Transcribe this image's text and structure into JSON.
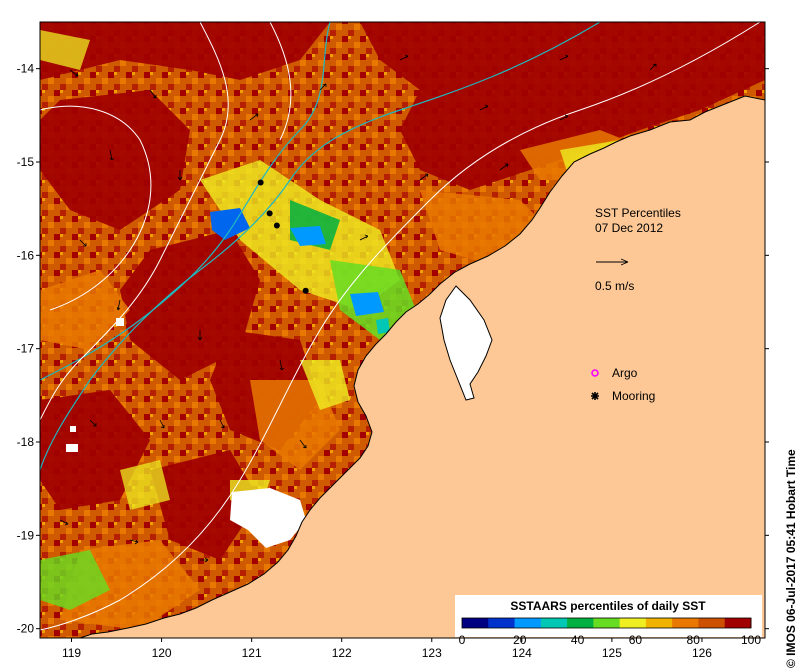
{
  "map": {
    "title_line1": "SST Percentiles",
    "title_line2": "07 Dec 2012",
    "vector_scale_label": "0.5 m/s",
    "x_ticks": [
      "119",
      "120",
      "121",
      "122",
      "123",
      "124",
      "125",
      "126"
    ],
    "y_ticks": [
      "-14",
      "-15",
      "-16",
      "-17",
      "-18",
      "-19",
      "-20"
    ],
    "x_range": [
      118.65,
      126.7
    ],
    "y_range": [
      -20.1,
      -13.5
    ],
    "colors": {
      "land": "#fdc896",
      "contour": "#ffffff",
      "shelf_isobath": "#20b8c0",
      "argo_marker": "#ff00ff",
      "mooring_marker": "#000000"
    },
    "markers": [
      {
        "type": "Mooring",
        "lon": 121.1,
        "lat": -15.22
      },
      {
        "type": "Mooring",
        "lon": 121.2,
        "lat": -15.55
      },
      {
        "type": "Mooring",
        "lon": 121.28,
        "lat": -15.68
      },
      {
        "type": "Mooring",
        "lon": 121.6,
        "lat": -16.38
      }
    ]
  },
  "legend": {
    "argo_label": "Argo",
    "mooring_label": "Mooring",
    "colorbar_title": "SSTAARS percentiles of daily SST",
    "colorbar_ticks": [
      "0",
      "20",
      "40",
      "60",
      "80",
      "100"
    ],
    "colorbar_colors": [
      "#000080",
      "#0033cc",
      "#0099ff",
      "#00c8b4",
      "#00b040",
      "#66dd22",
      "#eeee22",
      "#f0b400",
      "#e87800",
      "#cc5000",
      "#a00000"
    ]
  },
  "credit": "© IMOS 06-Jul-2017 05:41 Hobart Time"
}
